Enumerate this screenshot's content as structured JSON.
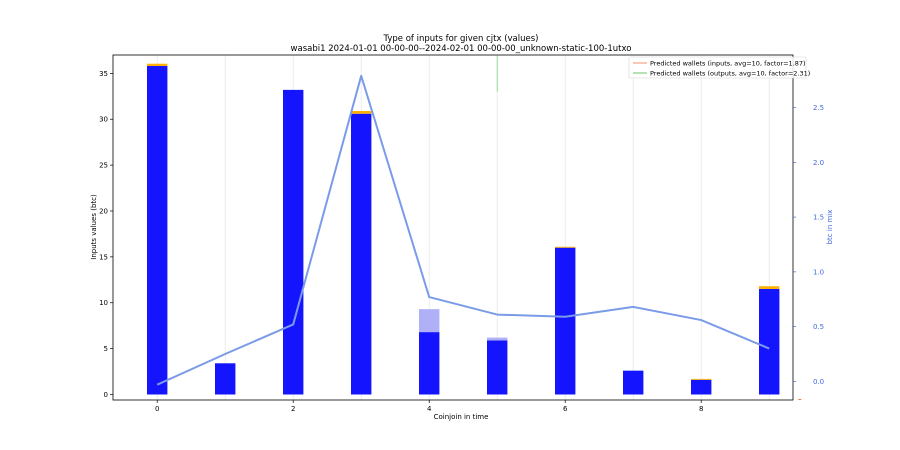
{
  "chart_data": {
    "type": "bar",
    "title": "Type of inputs for given cjtx (values)",
    "subtitle": "wasabi1 2024-01-01 00-00-00--2024-02-01 00-00-00_unknown-static-100-1utxo",
    "xlabel": "Coinjoin in time",
    "ylabel": "Inputs values (btc)",
    "ylabel_right": "btc in mix",
    "x": [
      0,
      1,
      2,
      3,
      4,
      5,
      6,
      7,
      8,
      9
    ],
    "xticks": [
      "0",
      "2",
      "4",
      "6",
      "8"
    ],
    "xtick_values": [
      0,
      2,
      4,
      6,
      8
    ],
    "xlim": [
      -0.65,
      9.35
    ],
    "ylim": [
      -0.6,
      37.0
    ],
    "yticks": [
      "0",
      "5",
      "10",
      "15",
      "20",
      "25",
      "30",
      "35"
    ],
    "ytick_values": [
      0,
      5,
      10,
      15,
      20,
      25,
      30,
      35
    ],
    "ylim_right": [
      -0.17,
      2.98
    ],
    "yticks_right": [
      "0.0",
      "0.5",
      "1.0",
      "1.5",
      "2.0",
      "2.5"
    ],
    "ytick_values_right": [
      0.0,
      0.5,
      1.0,
      1.5,
      2.0,
      2.5
    ],
    "grid": "vertical",
    "legend_position": "top-right",
    "bar_series": [
      {
        "color": "#1414ff",
        "values": [
          35.8,
          3.4,
          33.2,
          30.6,
          6.8,
          5.9,
          16.0,
          2.6,
          1.6,
          11.5
        ]
      },
      {
        "color": "#b0b0f7",
        "values": [
          0,
          0,
          0,
          0,
          2.5,
          0.3,
          0,
          0,
          0,
          0
        ]
      },
      {
        "color": "#ffb000",
        "values": [
          0.25,
          0,
          0,
          0.3,
          0,
          0,
          0.1,
          0,
          0.1,
          0.3
        ]
      }
    ],
    "line_series": {
      "color": "#7b9be8",
      "axis": "right",
      "values": [
        -0.03,
        0.25,
        0.52,
        2.79,
        0.77,
        0.61,
        0.59,
        0.68,
        0.56,
        0.3
      ]
    },
    "legend": [
      {
        "label": "Predicted wallets (inputs, avg=10, factor=1.87)",
        "color": "#f4a582"
      },
      {
        "label": "Predicted wallets (outputs, avg=10, factor=2.31)",
        "color": "#7fd07f"
      }
    ],
    "marks": [
      {
        "color": "#7fd07f",
        "x": 5,
        "y_top": 36.9,
        "y_bottom": 33.0
      },
      {
        "color": "#ff6a3d",
        "x": 9.45,
        "y": -0.55
      }
    ]
  }
}
